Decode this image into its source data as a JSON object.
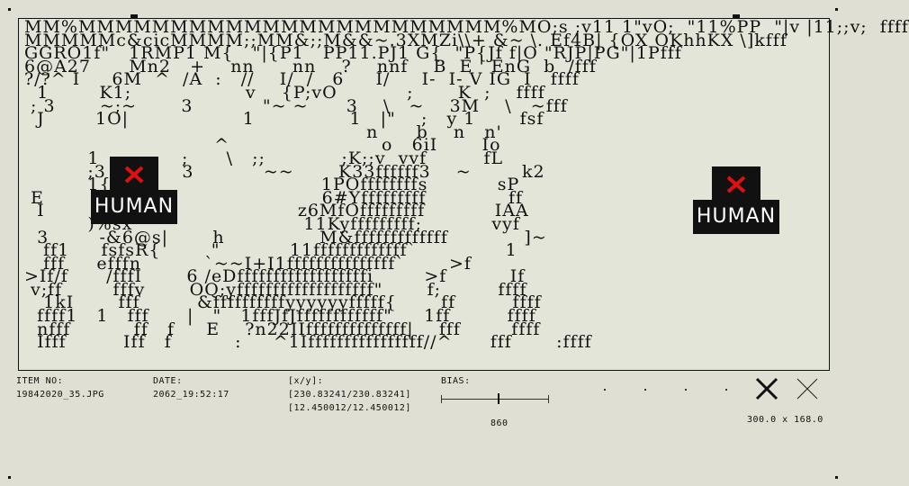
{
  "ascii_art": "MM%MMMMMMMMMMMMMMMMMMMMMMM%MO;s ;v11 1\"vO;  \"11%PP  \"|v |11;;v;  ffff\nMMMMMc&cicMMMM;;MM&;;M&&~.3XMZi\\\\+ &~ \\. Ef4B| {OX OKhhKX \\]kfff\nGGRO1f\"   1RMP1 M{   \"|{P1   PP11.PJ1 G{  \"P{Jf f|O \"RJP|PG\"|1Pfff\n6@A27      Mn2   +    nn      nn    ?    nnf    B  E ' EnG  b  /fff\n?/?^ I     6M  ^  /A  :   //    I/  /   6     I/     I-  I- V IG  I   ffff\n  1        K1;                  v    {P;vO           ;       K  ;    ffff\n ; 3       ~;~       3           \"~ ~      3    \\   ~    3M    \\   ~fff\n  J        1O|                  1               1   |\"    ;   y 1       fsf\n                                                      n      b    n   n'\n                              ^                        o   6iI       Io\n          1             ;      \\   ;;            ;K;;v  vvf         fL\n          ;3            3           ~~       K33ffffff3    ~        k2\n          1{f                                1POffffffffs           sP\n E        E 4n                             6#Yfffffffff             ff\n  I        ie         I                   z6MfOfffffffff           IAA\n          )%sx                           11Kyfffffffff;           vyf\n  3        -&6@s|       h               M&fffffffffffff            ]~\n   ff1     fsfsR{        \"           11fffffffffffff`              1\n   fff     efffn          `~~I+I1fffffffffffffff`       >f\n>If/f      /fffI       6 /eDffffffffffffffffffi        >f          If\n v;ff        fffv       OQ;yfffffffffffffffffff\"       f;         ffff\n   1kI       fff         &ffffffffffyyyyyyfffff{       ff         ffff\n  ffff1   1   fff      |   \"   1fffJfJffffffffffff\"     1ff         ffff\n  nfff          ff   f     E    ?n22IIffffffffffffff|    fff        ffff\n  Ifff         Iff   f          :     ^1Iffffffffffffffff//^      fff       :ffff",
  "overlays": [
    {
      "label": "HUMAN"
    },
    {
      "label": "HUMAN"
    }
  ],
  "meta": {
    "item_label": "ITEM NO:",
    "item_value": "19842020_35.JPG",
    "date_label": "DATE:",
    "date_value": "2062_19:52:17",
    "xy_label": "[x/y]:",
    "xy_value1": "[230.83241/230.83241]",
    "xy_value2": "[12.450012/12.450012]",
    "bias_label": "BIAS:",
    "bias_value": "860",
    "dimensions": "300.0 x 168.0"
  },
  "bias_level": 0.53,
  "icons": {
    "close_bold": "close-icon",
    "close_thin": "close-thin-icon"
  },
  "colors": {
    "background": "#dfe0d3",
    "ink": "#111111",
    "alert_red": "#e01010"
  }
}
